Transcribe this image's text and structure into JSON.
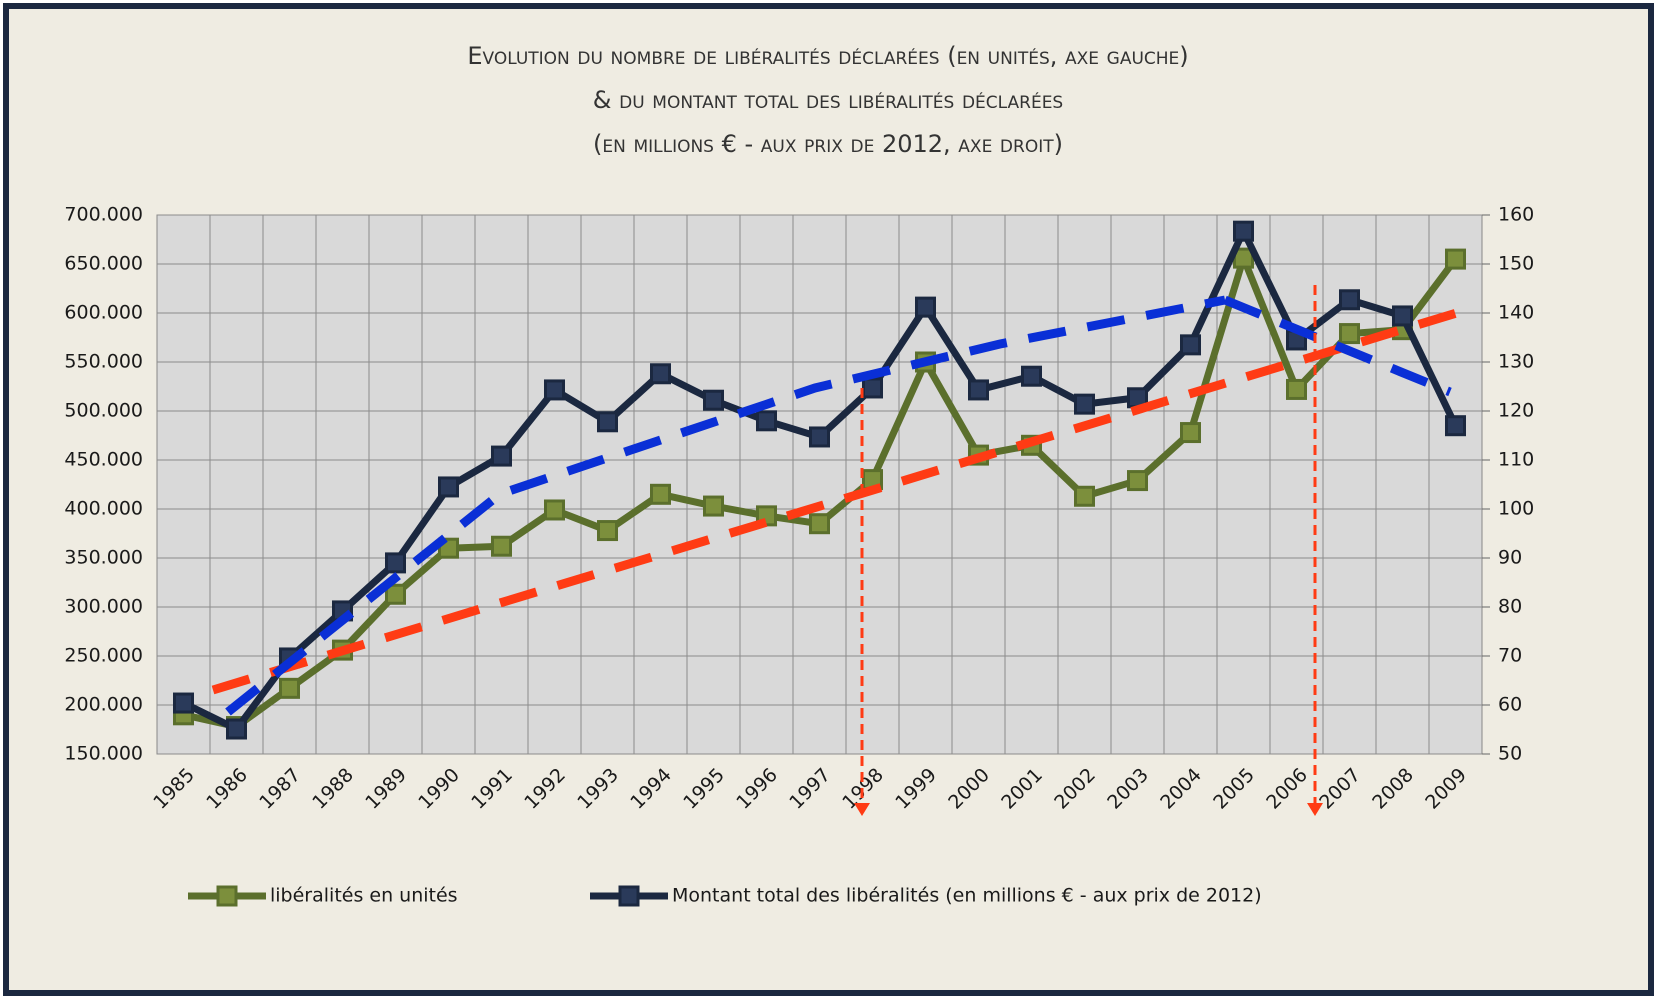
{
  "chart_data": {
    "type": "line",
    "title_lines": [
      "Evolution du nombre de libéralités déclarées (en unités, axe gauche)",
      "& du montant total des libéralités déclarées",
      "(en millions € - aux prix de 2012, axe droit)"
    ],
    "categories": [
      "1985",
      "1986",
      "1987",
      "1988",
      "1989",
      "1990",
      "1991",
      "1992",
      "1993",
      "1994",
      "1995",
      "1996",
      "1997",
      "1998",
      "1999",
      "2000",
      "2001",
      "2002",
      "2003",
      "2004",
      "2005",
      "2006",
      "2007",
      "2008",
      "2009"
    ],
    "series": [
      {
        "name": "libéralités en unités",
        "color": "#5b6f2c",
        "marker_color": "#7c8f3c",
        "axis": "y",
        "values": [
          190000,
          178000,
          217000,
          256000,
          313000,
          360000,
          362000,
          399000,
          378000,
          415000,
          403000,
          393000,
          385000,
          430000,
          550000,
          455000,
          465000,
          413000,
          429000,
          478000,
          656000,
          522000,
          579000,
          583000,
          655000
        ]
      },
      {
        "name": "Montant total des libéralités (en millions € - aux prix de 2012)",
        "color": "#1b2840",
        "marker_color": "#2a3a5a",
        "axis": "y2",
        "values": [
          60.4,
          55.1,
          69.6,
          79.2,
          89,
          104.5,
          110.8,
          124.3,
          117.8,
          127.6,
          122.2,
          118,
          114.7,
          124.7,
          141.2,
          124.3,
          127.1,
          121.4,
          122.7,
          133.5,
          156.7,
          134.5,
          142.7,
          139.4,
          117
        ]
      }
    ],
    "ylim": [
      150000,
      700000
    ],
    "yticks": [
      {
        "value": 150000,
        "label": "150.000"
      },
      {
        "value": 200000,
        "label": "200.000"
      },
      {
        "value": 250000,
        "label": "250.000"
      },
      {
        "value": 300000,
        "label": "300.000"
      },
      {
        "value": 350000,
        "label": "350.000"
      },
      {
        "value": 400000,
        "label": "400.000"
      },
      {
        "value": 450000,
        "label": "450.000"
      },
      {
        "value": 500000,
        "label": "500.000"
      },
      {
        "value": 550000,
        "label": "550.000"
      },
      {
        "value": 600000,
        "label": "600.000"
      },
      {
        "value": 650000,
        "label": "650.000"
      },
      {
        "value": 700000,
        "label": "700.000"
      }
    ],
    "y2lim": [
      50,
      160
    ],
    "y2ticks": [
      50,
      60,
      70,
      80,
      90,
      100,
      110,
      120,
      130,
      140,
      150,
      160
    ],
    "grid": true
  }
}
